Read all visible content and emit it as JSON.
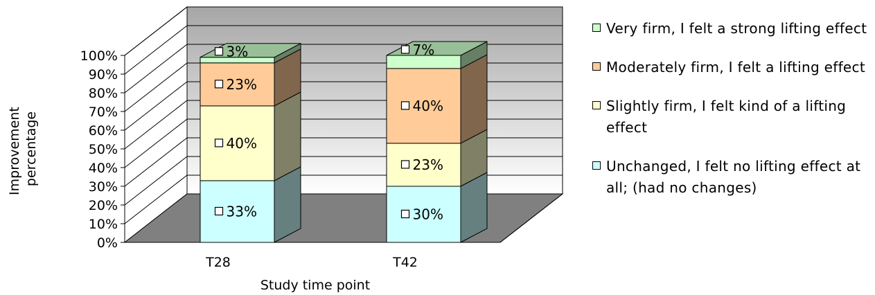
{
  "chart_data": {
    "type": "bar",
    "stacked": true,
    "three_d": true,
    "percent_stacked": true,
    "categories": [
      "T28",
      "T42"
    ],
    "series": [
      {
        "name": "Unchanged, I felt no lifting effect at all; (had no changes)",
        "values": [
          33,
          30
        ],
        "labels": [
          "33%",
          "30%"
        ],
        "color": "#ccffff"
      },
      {
        "name": "Slightly firm, I felt kind of a lifting effect",
        "values": [
          40,
          23
        ],
        "labels": [
          "40%",
          "23%"
        ],
        "color": "#ffffcc"
      },
      {
        "name": "Moderately firm, I felt a lifting effect",
        "values": [
          23,
          40
        ],
        "labels": [
          "23%",
          "40%"
        ],
        "color": "#ffcc99"
      },
      {
        "name": "Very firm, I felt a strong lifting effect",
        "values": [
          3,
          7
        ],
        "labels": [
          "3%",
          "7%"
        ],
        "color": "#ccffcc"
      }
    ],
    "title": "",
    "xlabel": "Study time point",
    "ylabel": "Improvement percentage",
    "ylim": [
      0,
      100
    ],
    "yticks": [
      "0%",
      "10%",
      "20%",
      "30%",
      "40%",
      "50%",
      "60%",
      "70%",
      "80%",
      "90%",
      "100%"
    ],
    "grid": true,
    "legend_position": "right",
    "colors": {
      "wall": "#c0c0c0",
      "floor": "#808080",
      "grid": "#000000"
    }
  }
}
